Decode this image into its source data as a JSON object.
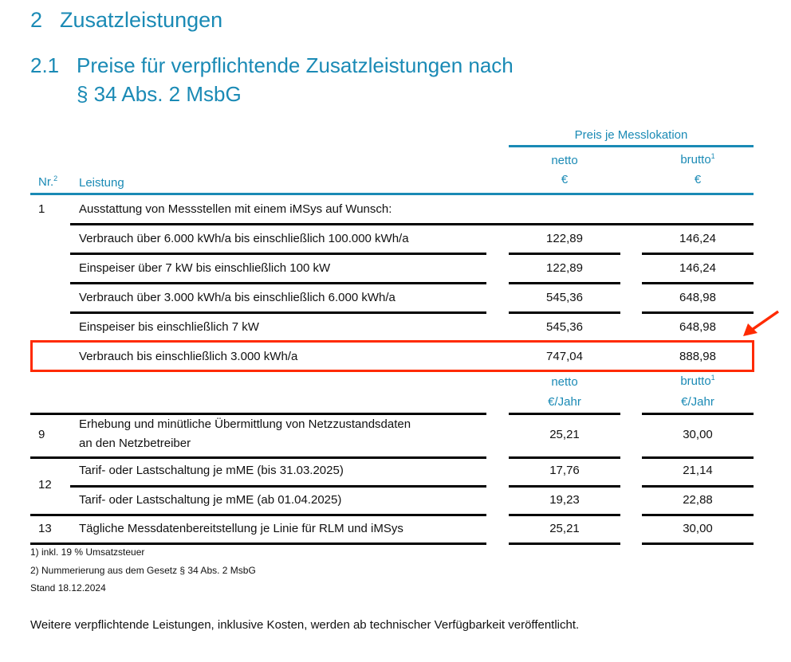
{
  "section": {
    "number": "2",
    "title": "Zusatzleistungen"
  },
  "subsection": {
    "number": "2.1",
    "title_line1": "Preise für verpflichtende Zusatzleistungen nach",
    "title_line2": "§ 34 Abs. 2 MsbG"
  },
  "table": {
    "group_header": "Preis je Messlokation",
    "col_nr": "Nr.",
    "col_nr_sup": "2",
    "col_leistung": "Leistung",
    "col_netto": "netto",
    "col_brutto": "brutto",
    "col_brutto_sup": "1",
    "unit_top": "€",
    "unit_bottom": "€/Jahr",
    "row1": {
      "nr": "1",
      "label": "Ausstattung von Messstellen mit einem iMSys auf Wunsch:"
    },
    "sub_rows": [
      {
        "label": "Verbrauch über 6.000 kWh/a bis einschließlich 100.000 kWh/a",
        "netto": "122,89",
        "brutto": "146,24"
      },
      {
        "label": "Einspeiser über 7 kW bis einschließlich 100 kW",
        "netto": "122,89",
        "brutto": "146,24"
      },
      {
        "label": "Verbrauch über 3.000 kWh/a bis einschließlich 6.000 kWh/a",
        "netto": "545,36",
        "brutto": "648,98"
      },
      {
        "label": "Einspeiser bis einschließlich 7 kW",
        "netto": "545,36",
        "brutto": "648,98"
      },
      {
        "label": "Verbrauch bis einschließlich 3.000 kWh/a",
        "netto": "747,04",
        "brutto": "888,98"
      }
    ],
    "row9": {
      "nr": "9",
      "label_line1": "Erhebung und minütliche Übermittlung von Netzzustandsdaten",
      "label_line2": "an den Netzbetreiber",
      "netto": "25,21",
      "brutto": "30,00"
    },
    "row12": {
      "nr": "12",
      "a": {
        "label": "Tarif- oder Lastschaltung je mME (bis 31.03.2025)",
        "netto": "17,76",
        "brutto": "21,14"
      },
      "b": {
        "label": "Tarif- oder Lastschaltung je mME (ab 01.04.2025)",
        "netto": "19,23",
        "brutto": "22,88"
      }
    },
    "row13": {
      "nr": "13",
      "label": "Tägliche Messdatenbereitstellung je Linie für RLM und iMSys",
      "netto": "25,21",
      "brutto": "30,00"
    }
  },
  "footnotes": [
    "1) inkl. 19 % Umsatzsteuer",
    "2) Nummerierung aus dem Gesetz § 34 Abs. 2 MsbG",
    "Stand 18.12.2024"
  ],
  "closing": "Weitere verpflichtende Leistungen, inklusive Kosten, werden ab technischer Verfügbarkeit veröffentlicht.",
  "colors": {
    "accent": "#1a8ab5",
    "highlight": "#ff2a00"
  }
}
